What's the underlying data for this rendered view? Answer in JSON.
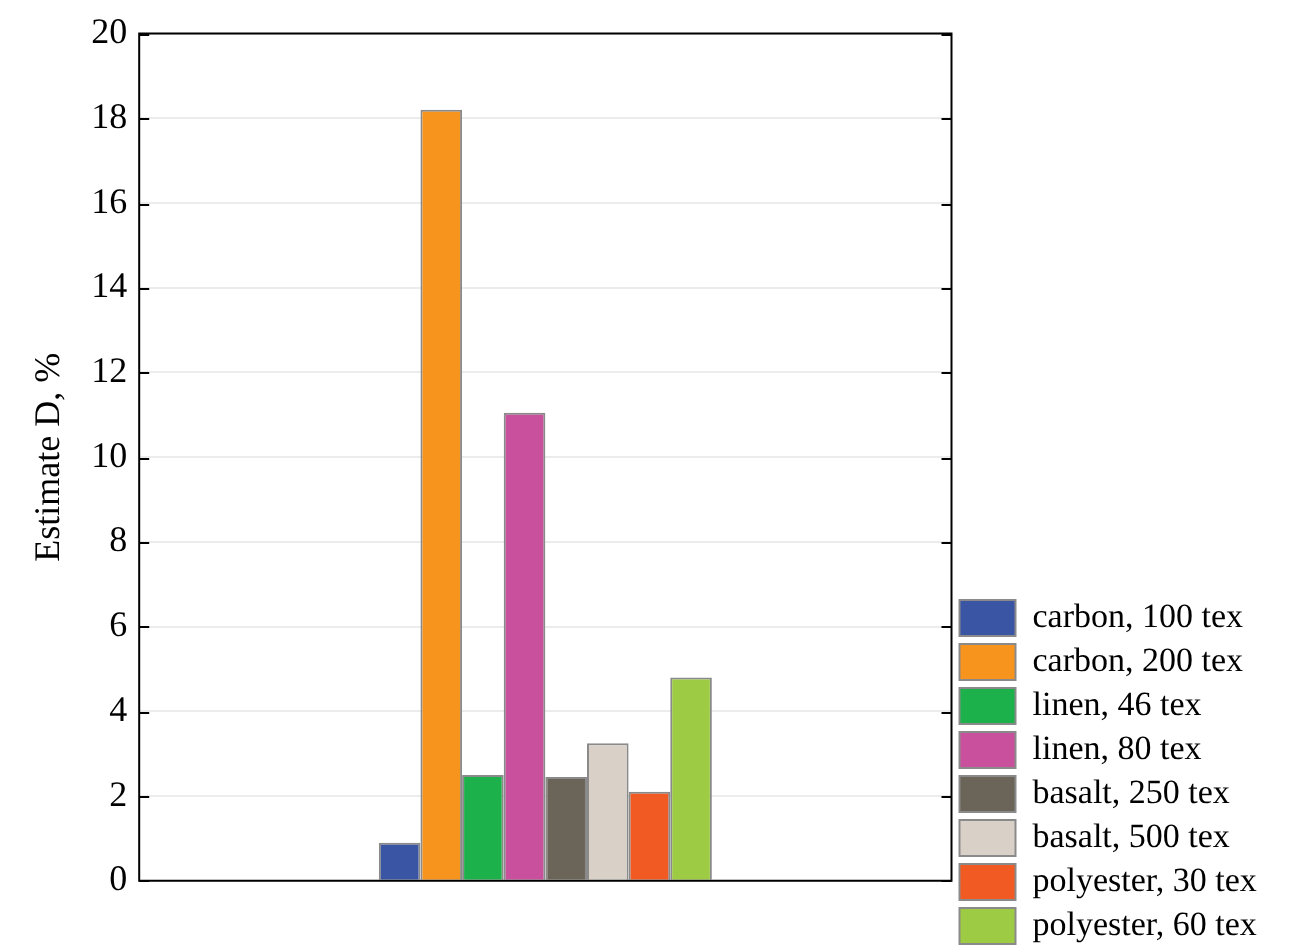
{
  "chart_data": {
    "type": "bar",
    "ylabel": "Estimate D, %",
    "categories": [
      null
    ],
    "series": [
      {
        "name": "carbon, 100 tex",
        "color": "#3b55a5",
        "values": [
          0.9
        ]
      },
      {
        "name": "carbon, 200 tex",
        "color": "#f7941e",
        "values": [
          18.2
        ]
      },
      {
        "name": "linen, 46 tex",
        "color": "#1db14b",
        "values": [
          2.5
        ]
      },
      {
        "name": "linen, 80 tex",
        "color": "#c9509d",
        "values": [
          11.05
        ]
      },
      {
        "name": "basalt, 250 tex",
        "color": "#6b6458",
        "values": [
          2.45
        ]
      },
      {
        "name": "basalt, 500 tex",
        "color": "#d9d0c7",
        "values": [
          3.25
        ]
      },
      {
        "name": "polyester, 30 tex",
        "color": "#f15a22",
        "values": [
          2.1
        ]
      },
      {
        "name": "polyester, 60 tex",
        "color": "#9dcb43",
        "values": [
          4.8
        ]
      }
    ],
    "ylim": [
      0,
      20
    ],
    "yticks": [
      0,
      2,
      4,
      6,
      8,
      10,
      12,
      14,
      16,
      18,
      20
    ],
    "grid": "y",
    "legend": "bottom right"
  }
}
